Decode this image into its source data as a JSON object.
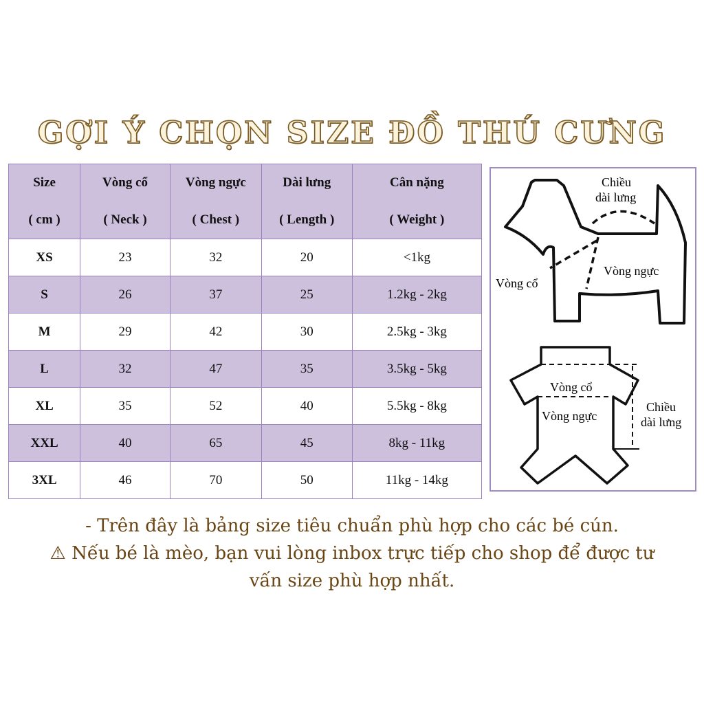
{
  "title": "GỢI Ý CHỌN SIZE ĐỒ THÚ CƯNG",
  "table": {
    "headers": [
      {
        "line1": "Size",
        "line2": "( cm )"
      },
      {
        "line1": "Vòng cổ",
        "line2": "( Neck )"
      },
      {
        "line1": "Vòng ngực",
        "line2": "( Chest )"
      },
      {
        "line1": "Dài lưng",
        "line2": "( Length )"
      },
      {
        "line1": "Cân nặng",
        "line2": "( Weight )"
      }
    ],
    "rows": [
      [
        "XS",
        "23",
        "32",
        "20",
        "<1kg"
      ],
      [
        "S",
        "26",
        "37",
        "25",
        "1.2kg - 2kg"
      ],
      [
        "M",
        "29",
        "42",
        "30",
        "2.5kg - 3kg"
      ],
      [
        "L",
        "32",
        "47",
        "35",
        "3.5kg - 5kg"
      ],
      [
        "XL",
        "35",
        "52",
        "40",
        "5.5kg - 8kg"
      ],
      [
        "XXL",
        "40",
        "65",
        "45",
        "8kg - 11kg"
      ],
      [
        "3XL",
        "46",
        "70",
        "50",
        "11kg - 14kg"
      ]
    ]
  },
  "diagram": {
    "dog_back": [
      "Chiều",
      "dài lưng"
    ],
    "dog_chest": "Vòng ngực",
    "dog_neck": "Vòng cổ",
    "shirt_neck": "Vòng cổ",
    "shirt_chest": "Vòng ngực",
    "shirt_length": [
      "Chiều",
      "dài lưng"
    ]
  },
  "notes": {
    "line1": "- Trên đây là bảng size tiêu chuẩn phù hợp cho các bé cún.",
    "line2": "⚠ Nếu bé là mèo, bạn vui lòng inbox trực tiếp cho shop để được tư",
    "line3": "vấn size phù hợp nhất."
  },
  "colors": {
    "header_bg": "#cdc0dd",
    "border": "#9a80c0",
    "note_text": "#6a4514"
  }
}
